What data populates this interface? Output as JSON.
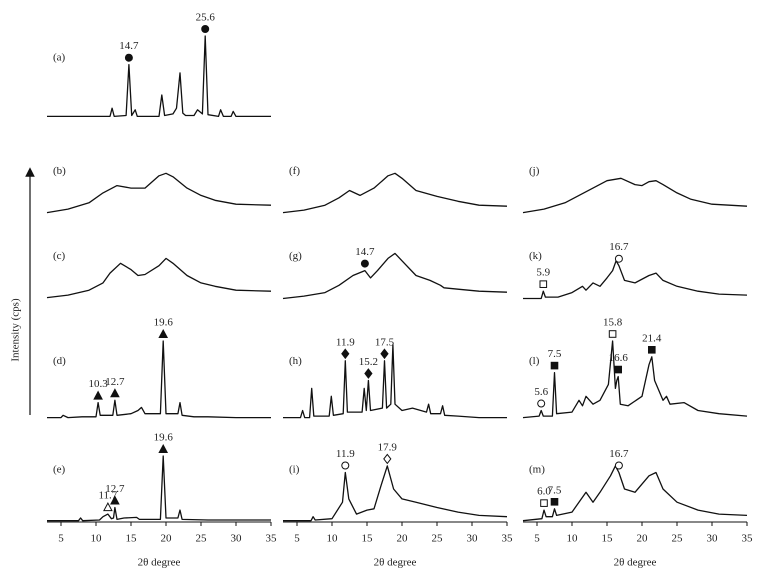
{
  "ylabel": "Intensity (cps)",
  "chart_data": [
    {
      "type": "line",
      "label": "(a)",
      "xlim": [
        3,
        35
      ],
      "ylim": [
        0,
        100
      ],
      "x": [
        3,
        12,
        12.3,
        12.6,
        14.3,
        14.7,
        15.1,
        15.6,
        15.9,
        16.2,
        19,
        19.4,
        19.8,
        21,
        21.5,
        22,
        22.4,
        22.8,
        24,
        24.5,
        25.2,
        25.6,
        26,
        27.5,
        27.8,
        28.2,
        29.3,
        29.6,
        30,
        31.5,
        35
      ],
      "values": [
        2,
        2,
        12,
        2,
        3,
        65,
        3,
        10,
        2,
        2,
        2,
        28,
        3,
        5,
        12,
        55,
        6,
        3,
        3,
        10,
        5,
        100,
        4,
        2,
        10,
        2,
        2,
        8,
        2,
        2,
        2
      ],
      "annotations": [
        {
          "x": 14.7,
          "marker": "filled-circle"
        },
        {
          "x": 25.6,
          "marker": "filled-circle"
        }
      ]
    },
    {
      "type": "line",
      "label": "(b)",
      "xlim": [
        3,
        35
      ],
      "ylim": [
        0,
        100
      ],
      "x": [
        3,
        6,
        9,
        11,
        13,
        15,
        17,
        19,
        20,
        21,
        23,
        25,
        27,
        30,
        35
      ],
      "values": [
        5,
        12,
        25,
        45,
        60,
        55,
        55,
        80,
        85,
        78,
        55,
        40,
        30,
        22,
        20
      ],
      "annotations": []
    },
    {
      "type": "line",
      "label": "(c)",
      "xlim": [
        3,
        35
      ],
      "ylim": [
        0,
        100
      ],
      "x": [
        3,
        6,
        9,
        11,
        12,
        13.5,
        15,
        16,
        17,
        19,
        20,
        21,
        23,
        25,
        27,
        30,
        35
      ],
      "values": [
        5,
        10,
        20,
        35,
        55,
        75,
        62,
        50,
        52,
        70,
        85,
        75,
        50,
        35,
        28,
        20,
        18
      ],
      "annotations": []
    },
    {
      "type": "line",
      "label": "(d)",
      "xlim": [
        3,
        35
      ],
      "ylim": [
        0,
        100
      ],
      "x": [
        3,
        5,
        5.3,
        6,
        8,
        10,
        10.3,
        10.6,
        12.4,
        12.7,
        13,
        15,
        16,
        16.5,
        17,
        19.2,
        19.6,
        20,
        21.7,
        22,
        22.3,
        24,
        26,
        30,
        35
      ],
      "values": [
        3,
        3,
        6,
        3,
        4,
        4,
        22,
        6,
        6,
        25,
        6,
        8,
        12,
        16,
        8,
        8,
        100,
        8,
        8,
        22,
        6,
        4,
        4,
        3,
        3
      ],
      "annotations": [
        {
          "x": 10.3,
          "marker": "filled-triangle"
        },
        {
          "x": 12.7,
          "marker": "filled-triangle"
        },
        {
          "x": 19.6,
          "marker": "filled-triangle"
        }
      ]
    },
    {
      "type": "line",
      "label": "(e)",
      "xlim": [
        3,
        35
      ],
      "ylim": [
        0,
        100
      ],
      "xticks": [
        5,
        10,
        15,
        20,
        25,
        30,
        35
      ],
      "xlabel": "2θ degree",
      "x": [
        3,
        7.5,
        7.8,
        8.1,
        10.5,
        11,
        11.7,
        12.2,
        12.5,
        12.7,
        13,
        14,
        15.8,
        16.2,
        19.2,
        19.6,
        20,
        21.7,
        22,
        22.3,
        26,
        35
      ],
      "values": [
        2,
        2,
        6,
        2,
        3,
        8,
        12,
        5,
        6,
        22,
        4,
        6,
        7,
        4,
        4,
        100,
        6,
        6,
        18,
        4,
        3,
        3
      ],
      "annotations": [
        {
          "x": 11.7,
          "marker": "open-triangle"
        },
        {
          "x": 12.7,
          "marker": "filled-triangle"
        },
        {
          "x": 19.6,
          "marker": "filled-triangle"
        }
      ]
    },
    {
      "type": "line",
      "label": "(f)",
      "xlim": [
        3,
        35
      ],
      "ylim": [
        0,
        100
      ],
      "x": [
        3,
        6,
        9,
        11,
        12.5,
        14,
        16,
        18,
        19,
        20,
        22,
        25,
        28,
        31,
        35
      ],
      "values": [
        5,
        10,
        20,
        35,
        50,
        40,
        55,
        80,
        85,
        75,
        50,
        38,
        28,
        20,
        18
      ],
      "annotations": []
    },
    {
      "type": "line",
      "label": "(g)",
      "xlim": [
        3,
        35
      ],
      "ylim": [
        0,
        100
      ],
      "x": [
        3,
        6,
        9,
        11,
        13,
        14.7,
        15.5,
        16.5,
        18,
        19,
        20,
        22,
        24,
        25.5,
        26,
        28,
        31,
        35
      ],
      "values": [
        3,
        8,
        15,
        30,
        50,
        60,
        45,
        60,
        85,
        95,
        80,
        50,
        40,
        30,
        25,
        22,
        18,
        16
      ],
      "annotations": [
        {
          "x": 14.7,
          "marker": "filled-circle"
        }
      ]
    },
    {
      "type": "line",
      "label": "(h)",
      "xlim": [
        3,
        35
      ],
      "ylim": [
        0,
        100
      ],
      "x": [
        3,
        5.5,
        5.8,
        6.1,
        6.8,
        7.1,
        7.4,
        9.6,
        9.9,
        10.2,
        11.6,
        11.9,
        12.2,
        14.3,
        14.6,
        14.9,
        15.2,
        15.5,
        17.2,
        17.5,
        17.8,
        18.4,
        18.7,
        19,
        20,
        21.5,
        23.5,
        23.8,
        24.1,
        25.5,
        25.8,
        26.1,
        28,
        31,
        35
      ],
      "values": [
        3,
        3,
        12,
        3,
        3,
        40,
        5,
        5,
        30,
        6,
        8,
        75,
        10,
        10,
        40,
        12,
        50,
        12,
        15,
        75,
        15,
        20,
        95,
        20,
        12,
        15,
        10,
        20,
        8,
        8,
        18,
        6,
        5,
        3,
        3
      ],
      "annotations": [
        {
          "x": 11.9,
          "marker": "filled-diamond"
        },
        {
          "x": 15.2,
          "marker": "filled-diamond"
        },
        {
          "x": 17.5,
          "marker": "filled-diamond"
        }
      ]
    },
    {
      "type": "line",
      "label": "(i)",
      "xlim": [
        3,
        35
      ],
      "ylim": [
        0,
        100
      ],
      "xticks": [
        5,
        10,
        15,
        20,
        25,
        30,
        35
      ],
      "xlabel": "2θ degree",
      "x": [
        3,
        7,
        7.3,
        7.6,
        10,
        11.5,
        11.9,
        12.4,
        13.5,
        15,
        16,
        17,
        17.9,
        18.8,
        20,
        22,
        25,
        28,
        31,
        35
      ],
      "values": [
        2,
        2,
        8,
        3,
        5,
        30,
        75,
        35,
        12,
        18,
        20,
        55,
        85,
        50,
        35,
        30,
        22,
        15,
        10,
        8
      ],
      "annotations": [
        {
          "x": 11.9,
          "marker": "open-circle"
        },
        {
          "x": 17.9,
          "marker": "open-diamond"
        }
      ]
    },
    {
      "type": "line",
      "label": "(j)",
      "xlim": [
        3,
        35
      ],
      "ylim": [
        0,
        100
      ],
      "x": [
        3,
        6,
        9,
        11,
        13,
        15,
        17,
        19,
        20,
        21,
        22,
        23,
        25,
        27,
        30,
        35
      ],
      "values": [
        5,
        12,
        25,
        40,
        55,
        70,
        75,
        62,
        60,
        68,
        70,
        62,
        45,
        32,
        22,
        18
      ],
      "annotations": []
    },
    {
      "type": "line",
      "label": "(k)",
      "xlim": [
        3,
        35
      ],
      "ylim": [
        0,
        100
      ],
      "x": [
        3,
        5.6,
        5.9,
        6.2,
        8,
        10,
        11.5,
        12,
        13,
        14,
        15,
        15.8,
        16.3,
        16.7,
        17.5,
        19,
        21,
        22,
        23,
        25,
        28,
        31,
        35
      ],
      "values": [
        3,
        3,
        18,
        6,
        6,
        15,
        28,
        20,
        35,
        28,
        45,
        60,
        80,
        70,
        40,
        35,
        50,
        55,
        40,
        28,
        18,
        12,
        10
      ],
      "annotations": [
        {
          "x": 5.9,
          "marker": "open-square"
        },
        {
          "x": 16.7,
          "marker": "open-circle"
        }
      ]
    },
    {
      "type": "line",
      "label": "(l)",
      "xlim": [
        3,
        35
      ],
      "ylim": [
        0,
        100
      ],
      "x": [
        3,
        5.3,
        5.6,
        5.9,
        7.2,
        7.5,
        7.8,
        10,
        11,
        11.5,
        12,
        13,
        14,
        15.2,
        15.8,
        16.2,
        16.4,
        16.6,
        16.9,
        18,
        20,
        21,
        21.4,
        21.8,
        23,
        23.5,
        24,
        26,
        28,
        31,
        35
      ],
      "values": [
        3,
        5,
        12,
        5,
        5,
        60,
        8,
        10,
        25,
        18,
        30,
        20,
        25,
        45,
        100,
        40,
        50,
        55,
        20,
        18,
        30,
        70,
        80,
        50,
        25,
        30,
        20,
        22,
        12,
        8,
        5
      ],
      "annotations": [
        {
          "x": 5.6,
          "marker": "open-circle"
        },
        {
          "x": 7.5,
          "marker": "filled-square"
        },
        {
          "x": 15.8,
          "marker": "open-square"
        },
        {
          "x": 16.6,
          "marker": "filled-square"
        },
        {
          "x": 21.4,
          "marker": "filled-square"
        }
      ]
    },
    {
      "type": "line",
      "label": "(m)",
      "xlim": [
        3,
        35
      ],
      "ylim": [
        0,
        100
      ],
      "xticks": [
        5,
        10,
        15,
        20,
        25,
        30,
        35
      ],
      "xlabel": "2θ degree",
      "x": [
        3,
        5.7,
        6.0,
        6.3,
        7.2,
        7.5,
        7.8,
        10,
        12,
        13,
        14,
        15.5,
        16.2,
        16.7,
        17.5,
        19,
        21,
        22,
        23,
        25,
        28,
        31,
        35
      ],
      "values": [
        2,
        5,
        18,
        8,
        8,
        20,
        10,
        15,
        45,
        30,
        45,
        70,
        85,
        75,
        50,
        45,
        70,
        75,
        50,
        30,
        18,
        12,
        10
      ],
      "annotations": [
        {
          "x": {
            "value": 6,
            "label": "6.0"
          },
          "marker": "open-square"
        },
        {
          "x": 7.5,
          "marker": "filled-square"
        },
        {
          "x": 16.7,
          "marker": "open-circle"
        }
      ]
    }
  ]
}
